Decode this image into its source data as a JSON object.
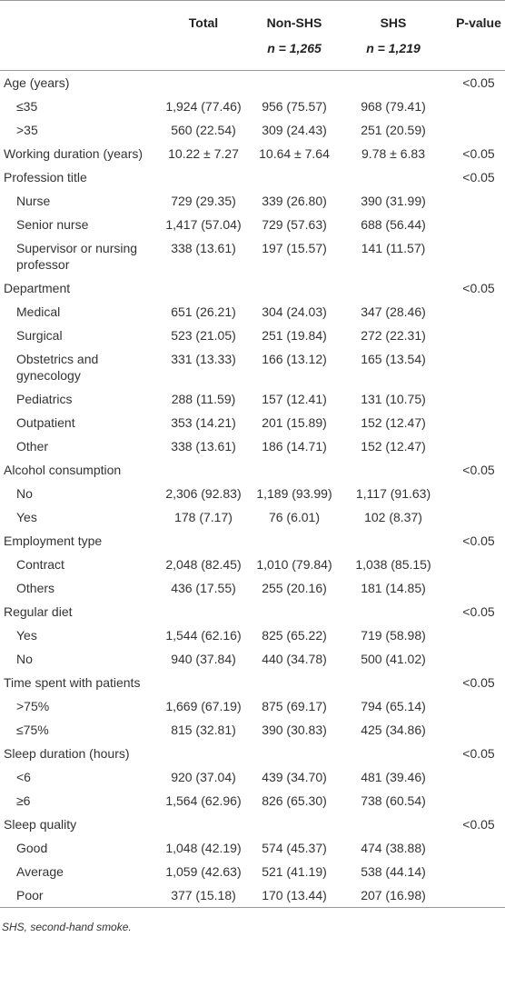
{
  "table": {
    "columns": [
      {
        "title": "Total"
      },
      {
        "title": "Non-SHS",
        "n": "n = 1,265"
      },
      {
        "title": "SHS",
        "n": "n = 1,219"
      },
      {
        "title": "P-value"
      }
    ],
    "groups": [
      {
        "label": "Age (years)",
        "p": "<0.05",
        "items": [
          {
            "label": "≤35",
            "values": [
              "1,924 (77.46)",
              "956 (75.57)",
              "968 (79.41)"
            ]
          },
          {
            "label": ">35",
            "values": [
              "560 (22.54)",
              "309 (24.43)",
              "251 (20.59)"
            ]
          }
        ]
      },
      {
        "label": "Working duration (years)",
        "values": [
          "10.22 ± 7.27",
          "10.64 ± 7.64",
          "9.78 ± 6.83"
        ],
        "p": "<0.05"
      },
      {
        "label": "Profession title",
        "p": "<0.05",
        "items": [
          {
            "label": "Nurse",
            "values": [
              "729 (29.35)",
              "339 (26.80)",
              "390 (31.99)"
            ]
          },
          {
            "label": "Senior nurse",
            "values": [
              "1,417 (57.04)",
              "729 (57.63)",
              "688 (56.44)"
            ]
          },
          {
            "label": "Supervisor or nursing professor",
            "values": [
              "338 (13.61)",
              "197 (15.57)",
              "141 (11.57)"
            ]
          }
        ]
      },
      {
        "label": "Department",
        "p": "<0.05",
        "items": [
          {
            "label": "Medical",
            "values": [
              "651 (26.21)",
              "304 (24.03)",
              "347 (28.46)"
            ]
          },
          {
            "label": "Surgical",
            "values": [
              "523 (21.05)",
              "251 (19.84)",
              "272 (22.31)"
            ]
          },
          {
            "label": "Obstetrics and gynecology",
            "values": [
              "331 (13.33)",
              "166 (13.12)",
              "165 (13.54)"
            ]
          },
          {
            "label": "Pediatrics",
            "values": [
              "288 (11.59)",
              "157 (12.41)",
              "131 (10.75)"
            ]
          },
          {
            "label": "Outpatient",
            "values": [
              "353 (14.21)",
              "201 (15.89)",
              "152 (12.47)"
            ]
          },
          {
            "label": "Other",
            "values": [
              "338 (13.61)",
              "186 (14.71)",
              "152 (12.47)"
            ]
          }
        ]
      },
      {
        "label": "Alcohol consumption",
        "p": "<0.05",
        "items": [
          {
            "label": "No",
            "values": [
              "2,306 (92.83)",
              "1,189 (93.99)",
              "1,117 (91.63)"
            ]
          },
          {
            "label": "Yes",
            "values": [
              "178 (7.17)",
              "76 (6.01)",
              "102 (8.37)"
            ]
          }
        ]
      },
      {
        "label": "Employment type",
        "p": "<0.05",
        "items": [
          {
            "label": "Contract",
            "values": [
              "2,048 (82.45)",
              "1,010 (79.84)",
              "1,038 (85.15)"
            ]
          },
          {
            "label": "Others",
            "values": [
              "436 (17.55)",
              "255 (20.16)",
              "181 (14.85)"
            ]
          }
        ]
      },
      {
        "label": "Regular diet",
        "p": "<0.05",
        "items": [
          {
            "label": "Yes",
            "values": [
              "1,544 (62.16)",
              "825 (65.22)",
              "719 (58.98)"
            ]
          },
          {
            "label": "No",
            "values": [
              "940 (37.84)",
              "440 (34.78)",
              "500 (41.02)"
            ]
          }
        ]
      },
      {
        "label": "Time spent with patients",
        "p": "<0.05",
        "items": [
          {
            "label": ">75%",
            "values": [
              "1,669 (67.19)",
              "875 (69.17)",
              "794 (65.14)"
            ]
          },
          {
            "label": "≤75%",
            "values": [
              "815 (32.81)",
              "390 (30.83)",
              "425 (34.86)"
            ]
          }
        ]
      },
      {
        "label": "Sleep duration (hours)",
        "p": "<0.05",
        "items": [
          {
            "label": "<6",
            "values": [
              "920 (37.04)",
              "439 (34.70)",
              "481 (39.46)"
            ]
          },
          {
            "label": "≥6",
            "values": [
              "1,564 (62.96)",
              "826 (65.30)",
              "738 (60.54)"
            ]
          }
        ]
      },
      {
        "label": "Sleep quality",
        "p": "<0.05",
        "items": [
          {
            "label": "Good",
            "values": [
              "1,048 (42.19)",
              "574 (45.37)",
              "474 (38.88)"
            ]
          },
          {
            "label": "Average",
            "values": [
              "1,059 (42.63)",
              "521 (41.19)",
              "538 (44.14)"
            ]
          },
          {
            "label": "Poor",
            "values": [
              "377 (15.18)",
              "170 (13.44)",
              "207 (16.98)"
            ]
          }
        ]
      }
    ],
    "footnote": "SHS, second-hand smoke."
  }
}
